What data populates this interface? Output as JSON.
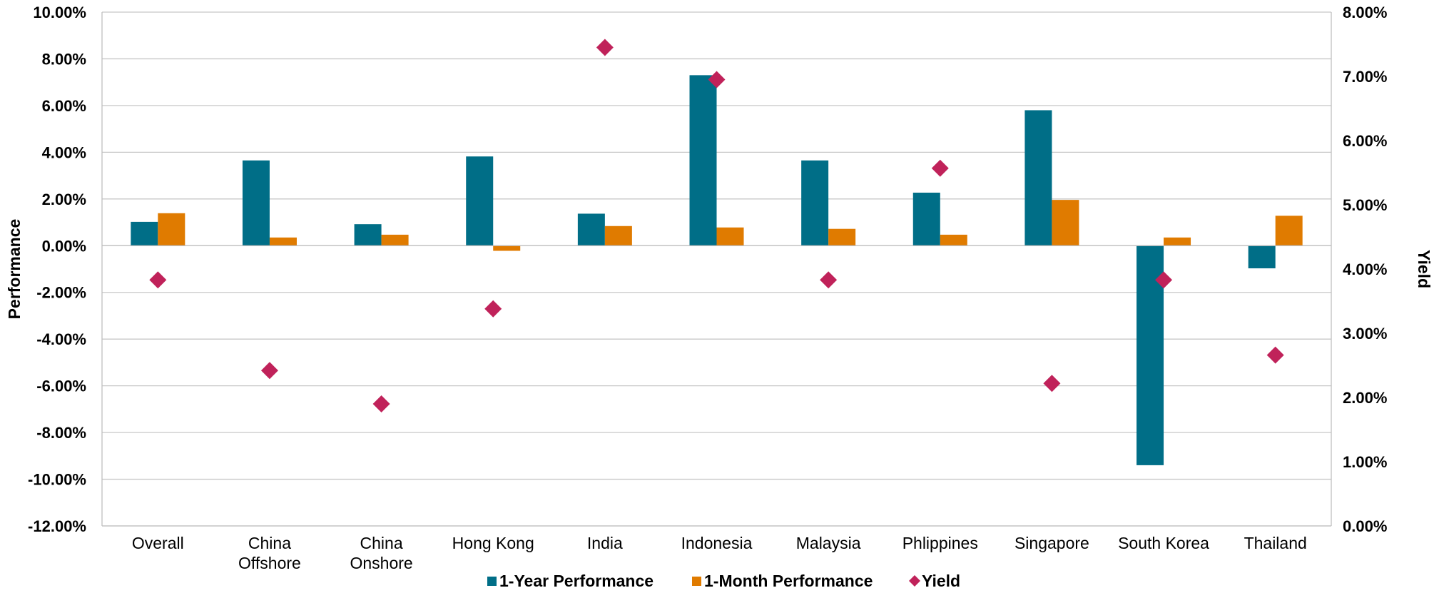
{
  "chart_data": {
    "type": "bar",
    "title": "",
    "categories": [
      "Overall",
      "China Offshore",
      "China Onshore",
      "Hong Kong",
      "India",
      "Indonesia",
      "Malaysia",
      "Phlippines",
      "Singapore",
      "South Korea",
      "Thailand"
    ],
    "category_lines": [
      [
        "Overall"
      ],
      [
        "China",
        "Offshore"
      ],
      [
        "China",
        "Onshore"
      ],
      [
        "Hong Kong"
      ],
      [
        "India"
      ],
      [
        "Indonesia"
      ],
      [
        "Malaysia"
      ],
      [
        "Phlippines"
      ],
      [
        "Singapore"
      ],
      [
        "South Korea"
      ],
      [
        "Thailand"
      ]
    ],
    "series": [
      {
        "name": "1-Year Performance",
        "type": "bar",
        "axis": "left",
        "color": "#006E87",
        "values": [
          1.02,
          3.65,
          0.92,
          3.82,
          1.37,
          7.3,
          3.65,
          2.27,
          5.8,
          -9.4,
          -0.97
        ]
      },
      {
        "name": "1-Month Performance",
        "type": "bar",
        "axis": "left",
        "color": "#E07B00",
        "values": [
          1.39,
          0.35,
          0.47,
          -0.22,
          0.84,
          0.78,
          0.72,
          0.47,
          1.96,
          0.35,
          1.28
        ]
      },
      {
        "name": "Yield",
        "type": "scatter",
        "marker": "diamond",
        "axis": "right",
        "color": "#C0225A",
        "values": [
          3.83,
          2.42,
          1.9,
          3.38,
          7.45,
          6.95,
          3.83,
          5.57,
          2.22,
          3.83,
          2.66
        ]
      }
    ],
    "ylabel": "Performance",
    "y2label": "Yield",
    "ylim": [
      -12,
      10
    ],
    "yticks": [
      -12,
      -10,
      -8,
      -6,
      -4,
      -2,
      0,
      2,
      4,
      6,
      8,
      10
    ],
    "ytick_labels": [
      "-12.00%",
      "-10.00%",
      "-8.00%",
      "-6.00%",
      "-4.00%",
      "-2.00%",
      "0.00%",
      "2.00%",
      "4.00%",
      "6.00%",
      "8.00%",
      "10.00%"
    ],
    "y2lim": [
      0,
      8
    ],
    "y2ticks": [
      0,
      1,
      2,
      3,
      4,
      5,
      6,
      7,
      8
    ],
    "y2tick_labels": [
      "0.00%",
      "1.00%",
      "2.00%",
      "3.00%",
      "4.00%",
      "5.00%",
      "6.00%",
      "7.00%",
      "8.00%"
    ],
    "grid": true,
    "legend_position": "bottom"
  }
}
